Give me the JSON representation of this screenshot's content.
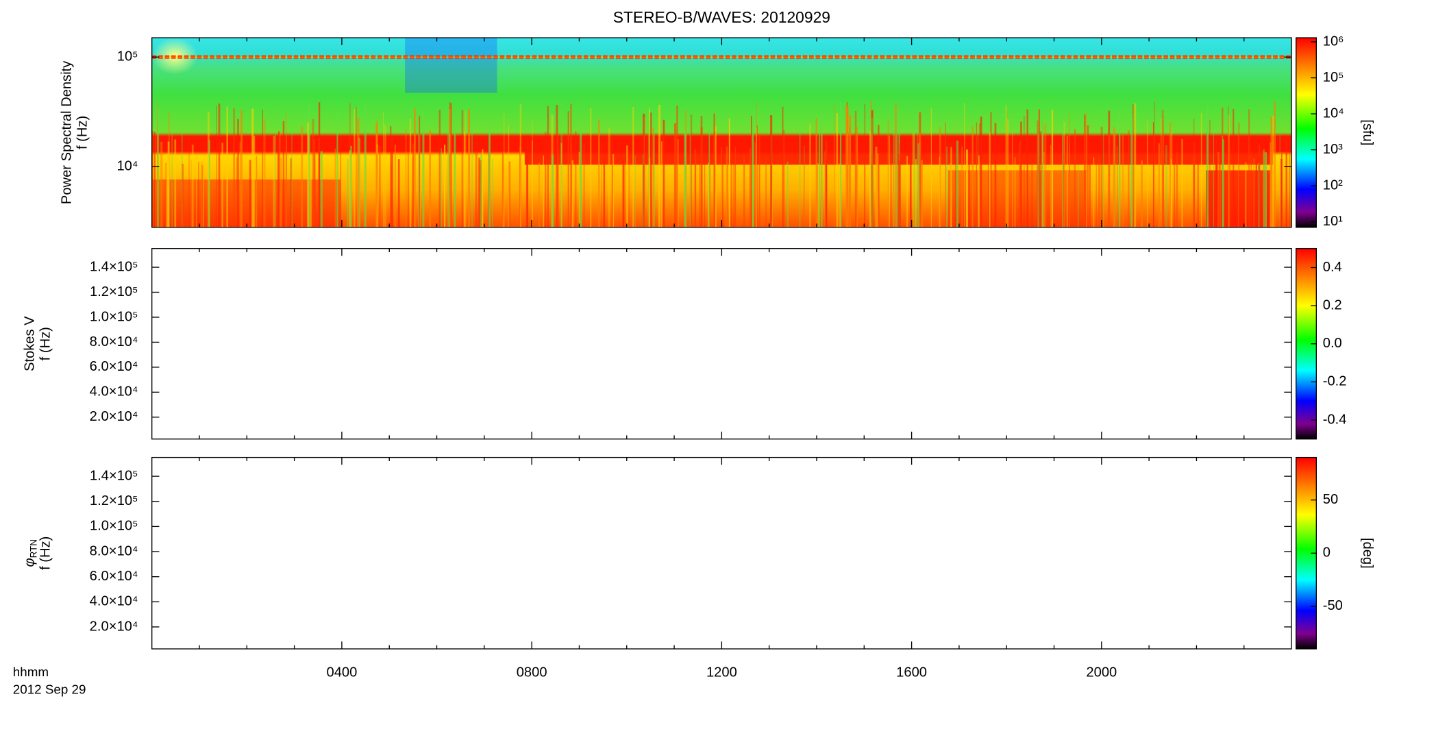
{
  "title": "STEREO-B/WAVES: 20120929",
  "time_label": "hhmm",
  "date_label": "2012 Sep 29",
  "x_axis": {
    "xlim": [
      0,
      24
    ],
    "xticks": [
      {
        "value": 4,
        "label": "0400"
      },
      {
        "value": 8,
        "label": "0800"
      },
      {
        "value": 12,
        "label": "1200"
      },
      {
        "value": 16,
        "label": "1600"
      },
      {
        "value": 20,
        "label": "2000"
      }
    ],
    "xminorticks": [
      1,
      2,
      3,
      5,
      6,
      7,
      9,
      10,
      11,
      13,
      14,
      15,
      17,
      18,
      19,
      21,
      22,
      23
    ]
  },
  "chart_data": [
    {
      "type": "spectrogram",
      "ylabel": [
        "Power Spectral Density",
        "f (Hz)"
      ],
      "ylog": true,
      "ylim": [
        2800,
        150000
      ],
      "yticks": [
        {
          "value": 10000,
          "label": "10⁴"
        },
        {
          "value": 100000,
          "label": "10⁵"
        }
      ],
      "colorbar": {
        "log": true,
        "lim": [
          7,
          1300000
        ],
        "ticks": [
          {
            "value": 10,
            "label": "10¹"
          },
          {
            "value": 100,
            "label": "10²"
          },
          {
            "value": 1000,
            "label": "10³"
          },
          {
            "value": 10000,
            "label": "10⁴"
          },
          {
            "value": 100000,
            "label": "10⁵"
          },
          {
            "value": 1000000,
            "label": "10⁶"
          }
        ],
        "label": "[sfu]"
      }
    },
    {
      "type": "spectrogram",
      "ylabel": [
        "Stokes V",
        "f (Hz)"
      ],
      "ylog": false,
      "ylim": [
        2500,
        155000
      ],
      "yticks": [
        {
          "value": 20000,
          "label": "2.0×10⁴"
        },
        {
          "value": 40000,
          "label": "4.0×10⁴"
        },
        {
          "value": 60000,
          "label": "6.0×10⁴"
        },
        {
          "value": 80000,
          "label": "8.0×10⁴"
        },
        {
          "value": 100000,
          "label": "1.0×10⁵"
        },
        {
          "value": 120000,
          "label": "1.2×10⁵"
        },
        {
          "value": 140000,
          "label": "1.4×10⁵"
        }
      ],
      "colorbar": {
        "log": false,
        "lim": [
          -0.5,
          0.5
        ],
        "ticks": [
          -0.4,
          -0.2,
          {
            "value": 0,
            "label": "0.0"
          },
          0.2,
          0.4
        ]
      }
    },
    {
      "type": "spectrogram",
      "ylabel_symbol": "φ",
      "ylabel_subscript": "RTN",
      "ylabel": [
        "f (Hz)"
      ],
      "ylog": false,
      "ylim": [
        2500,
        155000
      ],
      "yticks": [
        {
          "value": 20000,
          "label": "2.0×10⁴"
        },
        {
          "value": 40000,
          "label": "4.0×10⁴"
        },
        {
          "value": 60000,
          "label": "6.0×10⁴"
        },
        {
          "value": 80000,
          "label": "8.0×10⁴"
        },
        {
          "value": 100000,
          "label": "1.0×10⁵"
        },
        {
          "value": 120000,
          "label": "1.2×10⁵"
        },
        {
          "value": 140000,
          "label": "1.4×10⁵"
        }
      ],
      "colorbar": {
        "log": false,
        "lim": [
          -90,
          90
        ],
        "ticks": [
          -50,
          0,
          50
        ],
        "label": "[deg]"
      }
    }
  ]
}
